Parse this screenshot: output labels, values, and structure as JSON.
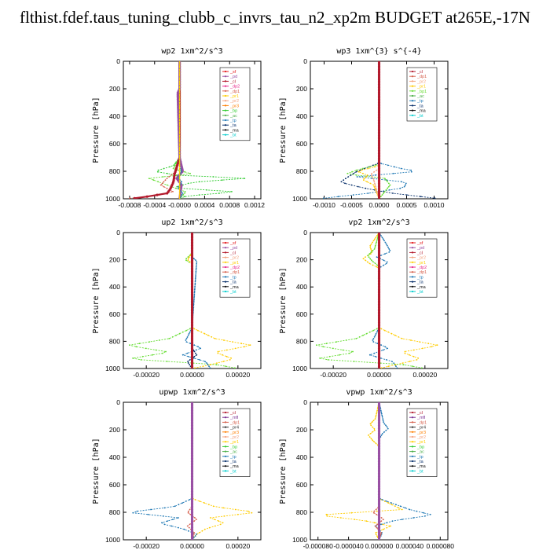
{
  "header": {
    "title": "flthist.fdef.taus_tuning_clubb_c_invrs_tau_n2_xp2m  BUDGET at265E,-17N"
  },
  "colors": {
    "sf": "#e41a1c",
    "pd": "#984ea3",
    "cl": "#b2182b",
    "mfl": "#7b3294",
    "dp2": "#e7298a",
    "dp1": "#d6604d",
    "dp4": "#c51b7d",
    "pr1": "#ffcc00",
    "pr2": "#f4a582",
    "pr3": "#ff7f00",
    "bp": "#33cc33",
    "bp1": "#66dd33",
    "ac": "#4daf4a",
    "tp": "#1f78b4",
    "ta": "#08306b",
    "ma": "#111111",
    "bt": "#00cccc"
  },
  "chart_data": [
    {
      "type": "line",
      "title": "wp2   1xm^2/s^3",
      "ylabel": "Pressure [hPa]",
      "xlim": [
        -0.0009,
        0.0013
      ],
      "ylim": [
        1000,
        0
      ],
      "xticks": [
        -0.0008,
        -0.0004,
        0.0,
        0.0004,
        0.0008,
        0.0012
      ],
      "xticklabels": [
        "-0.0008",
        "-0.0004",
        "-0.0000",
        "0.0004",
        "0.0008",
        "0.0012"
      ],
      "yticks": [
        0,
        200,
        400,
        600,
        800,
        1000
      ],
      "yticklabels": [
        "0",
        "200",
        "400",
        "600",
        "800",
        "1000"
      ],
      "legend_position": "top-right",
      "legend": [
        "_sf",
        "_pd",
        "_cl",
        "_dp2",
        "_dp1",
        "_pr1",
        "_pr2",
        "_pr3",
        "_bp",
        "_ac",
        "_tp",
        "_ta",
        "_ma",
        "_bt"
      ],
      "series": [
        {
          "key": "bp",
          "y": [
            0,
            700,
            760,
            800,
            830,
            850,
            880,
            920,
            950,
            980,
            1000
          ],
          "x": [
            0,
            0,
            -0.0001,
            -0.0004,
            -2e-05,
            0.0011,
            0.0002,
            -0.0001,
            0.0009,
            0.0001,
            0
          ]
        },
        {
          "key": "bp1",
          "y": [
            0,
            700,
            780,
            820,
            850,
            900,
            950,
            1000
          ],
          "x": [
            0,
            0,
            -0.0001,
            0.0002,
            -0.0005,
            -0.0002,
            0.0001,
            0
          ]
        },
        {
          "key": "dp1",
          "y": [
            0,
            700,
            800,
            850,
            900,
            950,
            980,
            1000
          ],
          "x": [
            0,
            0,
            -5e-05,
            -0.0002,
            -0.0003,
            -0.0001,
            -0.0004,
            -0.0009
          ]
        },
        {
          "key": "cl",
          "y": [
            0,
            700,
            820,
            880,
            930,
            960,
            990,
            1000
          ],
          "x": [
            0,
            0,
            -8e-05,
            -0.0001,
            -0.00015,
            -0.0002,
            -0.0006,
            -0.0008
          ]
        },
        {
          "key": "pd",
          "y": [
            0,
            200,
            230,
            700,
            800,
            850,
            900,
            1000
          ],
          "x": [
            0,
            0,
            -3e-05,
            0,
            5e-05,
            -5e-05,
            3e-05,
            0
          ]
        },
        {
          "key": "tp",
          "y": [
            0,
            760,
            800,
            850,
            880,
            920,
            960,
            1000
          ],
          "x": [
            0,
            0,
            3e-05,
            -2e-05,
            4e-05,
            -3e-05,
            5e-05,
            0
          ]
        },
        {
          "key": "pr1",
          "y": [
            0,
            1000
          ],
          "x": [
            0,
            0
          ]
        }
      ]
    },
    {
      "type": "line",
      "title": "wp3   1xm^{3} s^{-4}",
      "ylabel": "Pressure [hPa]",
      "xlim": [
        -0.00125,
        0.00125
      ],
      "ylim": [
        1000,
        0
      ],
      "xticks": [
        -0.001,
        -0.0005,
        0.0,
        0.0005,
        0.001
      ],
      "xticklabels": [
        "-0.0010",
        "-0.0005",
        "0.0000",
        "0.0005",
        "0.0010"
      ],
      "yticks": [
        0,
        200,
        400,
        600,
        800,
        1000
      ],
      "yticklabels": [
        "0",
        "200",
        "400",
        "600",
        "800",
        "1000"
      ],
      "legend_position": "top-right",
      "legend": [
        "_cl",
        "_dp1",
        "_pr2",
        "_pr1",
        "_bp1",
        "_ac",
        "_tp",
        "_ta",
        "_ma",
        "_bt"
      ],
      "series": [
        {
          "key": "tp",
          "y": [
            0,
            740,
            780,
            800,
            840,
            880,
            920,
            960,
            1000
          ],
          "x": [
            0,
            0,
            0.0004,
            0.0007,
            -0.0004,
            0.0005,
            0.00045,
            -0.0002,
            -0.0011
          ]
        },
        {
          "key": "ta",
          "y": [
            0,
            740,
            800,
            850,
            880,
            920,
            960,
            1000
          ],
          "x": [
            0,
            0,
            -0.0004,
            -0.0006,
            -0.0007,
            -0.0003,
            0.00025,
            0.0011
          ]
        },
        {
          "key": "bp1",
          "y": [
            0,
            750,
            790,
            820,
            850,
            900,
            1000
          ],
          "x": [
            0,
            0,
            -0.0004,
            -0.0006,
            0.0001,
            0.0002,
            0
          ]
        },
        {
          "key": "pr1",
          "y": [
            0,
            760,
            800,
            830,
            860,
            900,
            1000
          ],
          "x": [
            0,
            0,
            -0.0004,
            -0.0002,
            -0.0003,
            -0.0001,
            0
          ]
        },
        {
          "key": "pr2",
          "y": [
            0,
            780,
            820,
            860,
            1000
          ],
          "x": [
            0,
            0,
            -0.00015,
            -0.0001,
            0
          ]
        },
        {
          "key": "cl",
          "y": [
            0,
            1000
          ],
          "x": [
            0,
            0
          ]
        }
      ]
    },
    {
      "type": "line",
      "title": "up2   1xm^2/s^3",
      "ylabel": "Pressure [hPa]",
      "xlim": [
        -0.0003,
        0.0003
      ],
      "ylim": [
        1000,
        0
      ],
      "xticks": [
        -0.0002,
        0.0,
        0.0002
      ],
      "xticklabels": [
        "-0.00020",
        "0.00000",
        "0.00020"
      ],
      "yticks": [
        0,
        200,
        400,
        600,
        800,
        1000
      ],
      "yticklabels": [
        "0",
        "200",
        "400",
        "600",
        "800",
        "1000"
      ],
      "legend_position": "top-right",
      "legend": [
        "_sf",
        "_pd",
        "_cl",
        "_pr2",
        "_pr1",
        "_dp2",
        "_dp1",
        "_tp",
        "_ta",
        "_ma",
        "_bt"
      ],
      "series": [
        {
          "key": "bp1",
          "y": [
            0,
            150,
            200,
            230,
            700,
            780,
            830,
            880,
            930,
            970,
            1000
          ],
          "x": [
            0,
            0,
            -3e-05,
            0,
            0,
            -0.0001,
            -0.00028,
            -0.0001,
            -0.00028,
            0.0001,
            0.0002
          ]
        },
        {
          "key": "pr1",
          "y": [
            0,
            150,
            200,
            230,
            700,
            780,
            830,
            880,
            930,
            980,
            1000
          ],
          "x": [
            0,
            0,
            -2e-05,
            0,
            0,
            0.0001,
            0.00026,
            0.0001,
            0.00018,
            6e-05,
            0
          ]
        },
        {
          "key": "tp",
          "y": [
            0,
            180,
            210,
            700,
            800,
            850,
            900,
            950,
            1000
          ],
          "x": [
            0,
            0,
            2e-05,
            0,
            -3e-05,
            4e-05,
            -4e-05,
            6e-05,
            8e-05
          ]
        },
        {
          "key": "ta",
          "y": [
            0,
            850,
            900,
            950,
            1000
          ],
          "x": [
            0,
            0,
            2e-05,
            -2e-05,
            0
          ]
        },
        {
          "key": "cl",
          "y": [
            0,
            1000
          ],
          "x": [
            0,
            0
          ]
        }
      ]
    },
    {
      "type": "line",
      "title": "vp2   1xm^2/s^3",
      "ylabel": "Pressure [hPa]",
      "xlim": [
        -0.0003,
        0.0003
      ],
      "ylim": [
        1000,
        0
      ],
      "xticks": [
        -0.0002,
        0.0,
        0.0002
      ],
      "xticklabels": [
        "-0.00020",
        "0.00000",
        "0.00020"
      ],
      "yticks": [
        0,
        200,
        400,
        600,
        800,
        1000
      ],
      "yticklabels": [
        "0",
        "200",
        "400",
        "600",
        "800",
        "1000"
      ],
      "legend_position": "top-right",
      "legend": [
        "_sf",
        "_pd",
        "_cl",
        "_pr2",
        "_pr1",
        "_dp2",
        "_dp1",
        "_tp",
        "_ta",
        "_ma",
        "_bt"
      ],
      "series": [
        {
          "key": "tp",
          "y": [
            0,
            80,
            140,
            180,
            220,
            260,
            700,
            800,
            850,
            900,
            950,
            1000
          ],
          "x": [
            0,
            3e-05,
            5e-05,
            -1e-05,
            4e-05,
            0,
            0,
            -3e-05,
            4e-05,
            -4e-05,
            6e-05,
            8e-05
          ]
        },
        {
          "key": "pr1",
          "y": [
            0,
            100,
            150,
            190,
            230,
            260,
            700,
            780,
            830,
            880,
            930,
            1000
          ],
          "x": [
            0,
            -4e-05,
            -3e-05,
            -7e-05,
            -4e-05,
            0,
            0,
            0.0001,
            0.00026,
            0.0001,
            0.00018,
            0
          ]
        },
        {
          "key": "bp1",
          "y": [
            0,
            120,
            170,
            210,
            250,
            700,
            780,
            830,
            880,
            930,
            970,
            1000
          ],
          "x": [
            0,
            -2e-05,
            -5e-05,
            -3e-05,
            0,
            0,
            -0.0001,
            -0.00028,
            -0.0001,
            -0.00028,
            0.0001,
            0.0002
          ]
        },
        {
          "key": "cl",
          "y": [
            0,
            1000
          ],
          "x": [
            0,
            0
          ]
        }
      ]
    },
    {
      "type": "line",
      "title": "upwp   1xm^2/s^3",
      "ylabel": "Pressure [hPa]",
      "xlim": [
        -0.0003,
        0.0003
      ],
      "ylim": [
        1000,
        0
      ],
      "xticks": [
        -0.0002,
        0.0,
        0.0002
      ],
      "xticklabels": [
        "-0.00020",
        "0.00000",
        "0.00020"
      ],
      "yticks": [
        0,
        200,
        400,
        600,
        800,
        1000
      ],
      "yticklabels": [
        "0",
        "200",
        "400",
        "600",
        "800",
        "1000"
      ],
      "legend_position": "top-right",
      "legend": [
        "_cl",
        "_mfl",
        "_dp1",
        "_pr4",
        "_pr3",
        "_pr2",
        "_pr1",
        "_bp",
        "_ac",
        "_tp",
        "_ta",
        "_ma",
        "_bt"
      ],
      "series": [
        {
          "key": "pr1",
          "y": [
            0,
            700,
            760,
            800,
            840,
            880,
            920,
            960,
            1000
          ],
          "x": [
            0,
            0,
            0.0001,
            0.00028,
            8e-05,
            0.00014,
            6e-05,
            2e-05,
            0
          ]
        },
        {
          "key": "tp",
          "y": [
            0,
            700,
            760,
            800,
            840,
            880,
            920,
            960,
            1000
          ],
          "x": [
            0,
            0,
            -8e-05,
            -0.00028,
            -6e-05,
            -0.00014,
            -4e-05,
            2e-05,
            0
          ]
        },
        {
          "key": "dp1",
          "y": [
            0,
            760,
            800,
            850,
            900,
            950,
            1000
          ],
          "x": [
            0,
            0,
            -2e-05,
            2e-05,
            -2e-05,
            1e-05,
            0
          ]
        },
        {
          "key": "pd",
          "y": [
            0,
            1000
          ],
          "x": [
            0,
            0
          ]
        }
      ]
    },
    {
      "type": "line",
      "title": "vpwp   1xm^2/s^3",
      "ylabel": "Pressure [hPa]",
      "xlim": [
        -9e-05,
        9e-05
      ],
      "ylim": [
        1000,
        0
      ],
      "xticks": [
        -8e-05,
        -4e-05,
        0.0,
        4e-05,
        8e-05
      ],
      "xticklabels": [
        "-0.000080",
        "-0.000040",
        "0.000000",
        "0.000040",
        "0.000080"
      ],
      "yticks": [
        0,
        200,
        400,
        600,
        800,
        1000
      ],
      "yticklabels": [
        "0",
        "200",
        "400",
        "600",
        "800",
        "1000"
      ],
      "legend_position": "top-right",
      "legend": [
        "_cl",
        "_mfl",
        "_dp1",
        "_pr4",
        "_pr3",
        "_pr2",
        "_pr1",
        "_bp",
        "_ac",
        "_tp",
        "_ta",
        "_ma",
        "_bt"
      ],
      "series": [
        {
          "key": "pr1",
          "y": [
            0,
            120,
            160,
            200,
            240,
            280,
            320,
            700,
            780,
            820,
            860,
            900,
            950,
            1000
          ],
          "x": [
            0,
            -5e-06,
            -1.2e-05,
            -5e-06,
            -1.4e-05,
            -8e-06,
            0,
            0,
            3e-05,
            -8e-05,
            -2e-05,
            1.5e-05,
            -5e-06,
            0
          ]
        },
        {
          "key": "tp",
          "y": [
            0,
            150,
            190,
            230,
            270,
            700,
            780,
            820,
            860,
            900,
            950,
            1000
          ],
          "x": [
            0,
            6e-06,
            1.2e-05,
            4e-06,
            0,
            0,
            4e-05,
            7e-05,
            2e-05,
            -5e-06,
            4e-06,
            0
          ]
        },
        {
          "key": "dp1",
          "y": [
            0,
            760,
            800,
            850,
            900,
            950,
            1000
          ],
          "x": [
            0,
            0,
            -8e-06,
            6e-06,
            -5e-06,
            3e-06,
            0
          ]
        },
        {
          "key": "pd",
          "y": [
            0,
            1000
          ],
          "x": [
            0,
            0
          ]
        }
      ]
    }
  ]
}
